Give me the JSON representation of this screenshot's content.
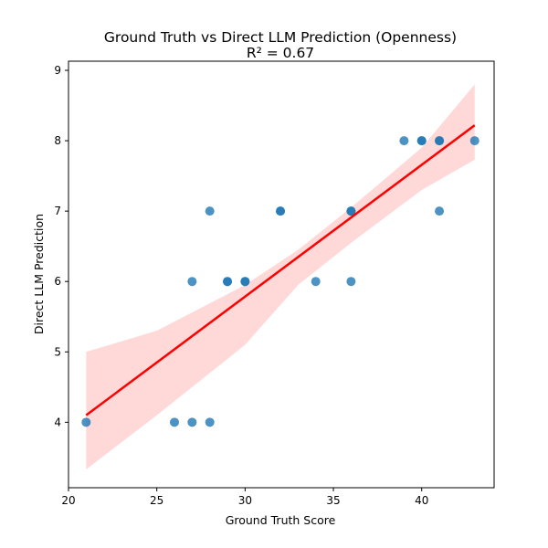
{
  "chart_data": {
    "type": "scatter",
    "title": "Ground Truth vs Direct LLM Prediction (Openness)",
    "subtitle": "R² = 0.67",
    "xlabel": "Ground Truth Score",
    "ylabel": "Direct LLM Prediction",
    "xlim": [
      20.0,
      44.1
    ],
    "ylim": [
      3.07,
      9.13
    ],
    "xticks": [
      20,
      25,
      30,
      35,
      40
    ],
    "yticks": [
      4,
      5,
      6,
      7,
      8,
      9
    ],
    "grid": false,
    "points": [
      {
        "x": 21,
        "y": 4
      },
      {
        "x": 26,
        "y": 4
      },
      {
        "x": 27,
        "y": 4
      },
      {
        "x": 28,
        "y": 4
      },
      {
        "x": 27,
        "y": 6
      },
      {
        "x": 28,
        "y": 7
      },
      {
        "x": 29,
        "y": 6
      },
      {
        "x": 29,
        "y": 6
      },
      {
        "x": 30,
        "y": 6
      },
      {
        "x": 30,
        "y": 6
      },
      {
        "x": 32,
        "y": 7
      },
      {
        "x": 32,
        "y": 7
      },
      {
        "x": 34,
        "y": 6
      },
      {
        "x": 36,
        "y": 6
      },
      {
        "x": 36,
        "y": 7
      },
      {
        "x": 36,
        "y": 7
      },
      {
        "x": 39,
        "y": 8
      },
      {
        "x": 40,
        "y": 8
      },
      {
        "x": 40,
        "y": 8
      },
      {
        "x": 41,
        "y": 8
      },
      {
        "x": 41,
        "y": 8
      },
      {
        "x": 41,
        "y": 7
      },
      {
        "x": 43,
        "y": 8
      }
    ],
    "regression": {
      "x": [
        21,
        43
      ],
      "y": [
        4.1,
        8.22
      ],
      "color": "#ff0000"
    },
    "confidence_band": {
      "x": [
        21,
        25,
        30,
        33,
        36,
        40,
        43
      ],
      "upper": [
        5.0,
        5.3,
        5.95,
        6.45,
        7.05,
        7.9,
        8.8
      ],
      "lower": [
        3.33,
        4.1,
        5.1,
        5.95,
        6.55,
        7.3,
        7.73
      ],
      "color": "#ffd6d6"
    },
    "point_color": "#1f77b4"
  }
}
